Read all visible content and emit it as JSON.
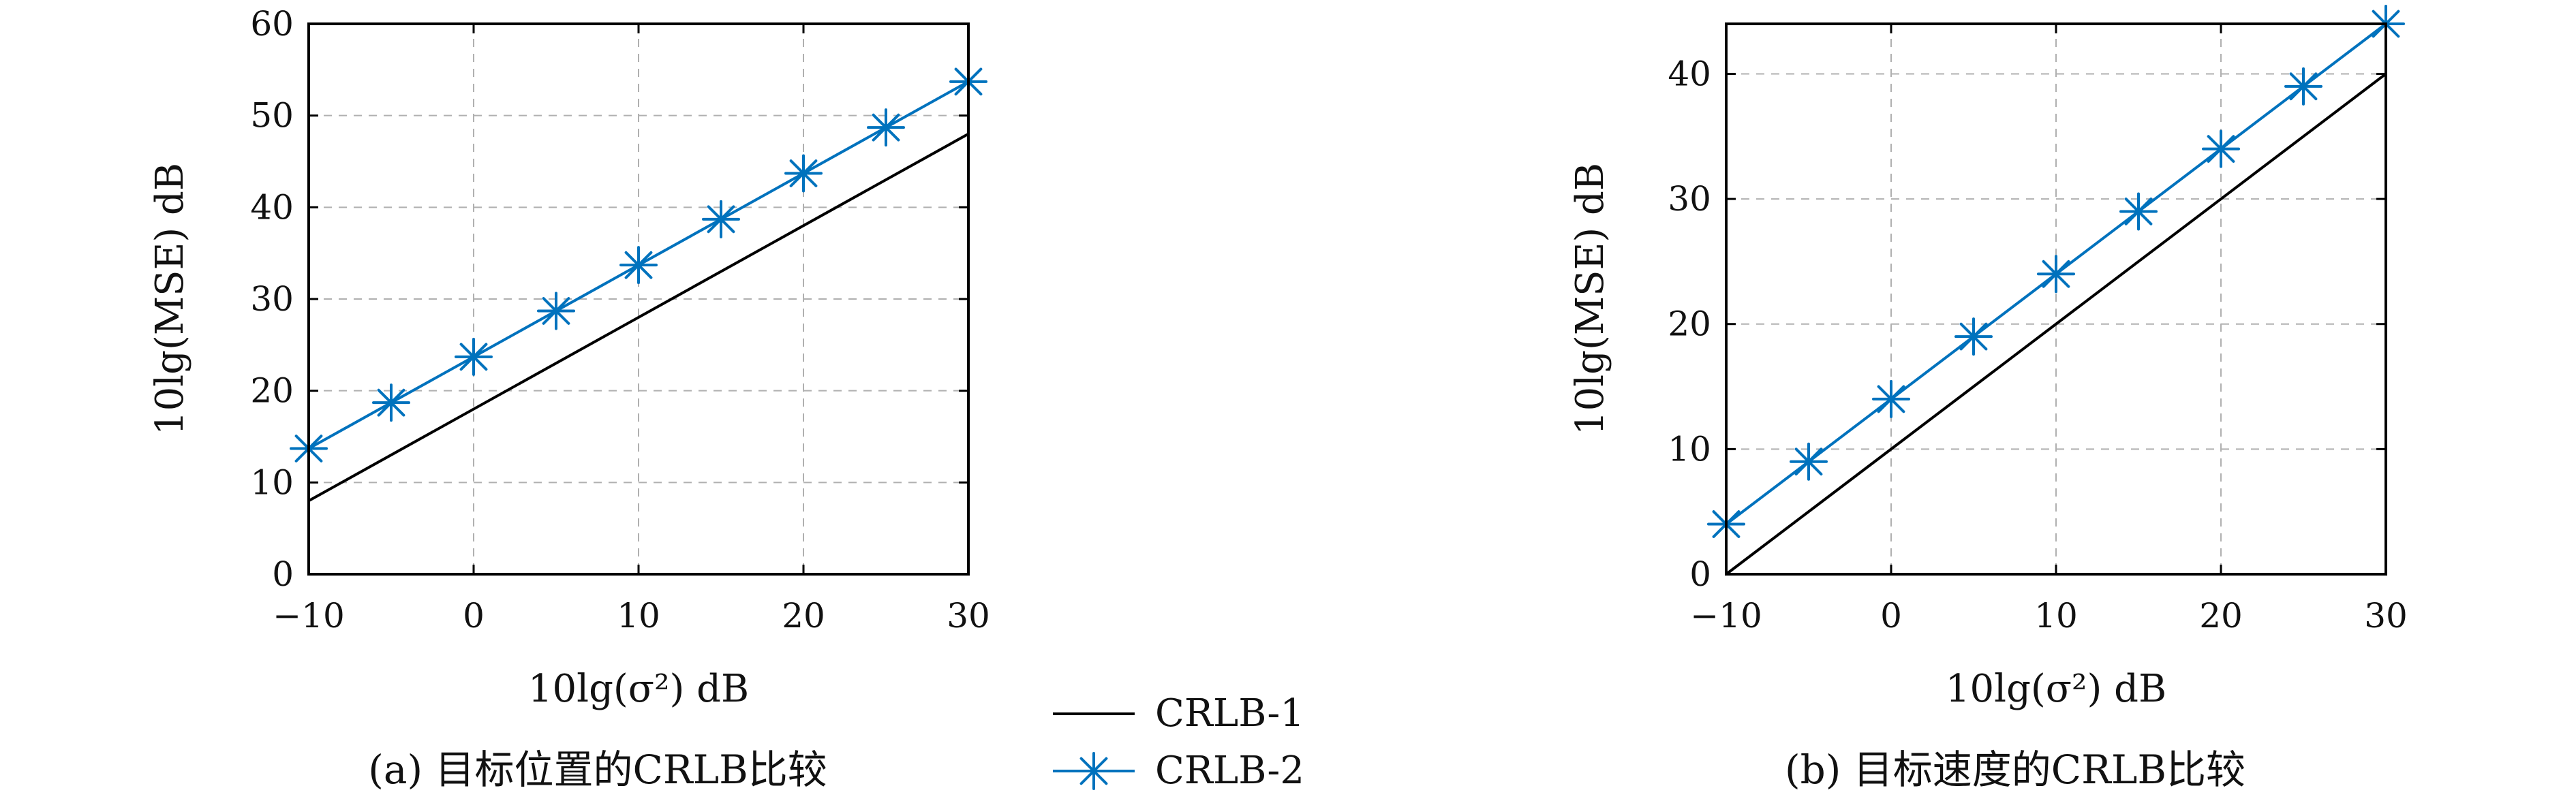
{
  "colors": {
    "crlb1": "#000000",
    "crlb2": "#0072bd",
    "grid": "#b0b0b0"
  },
  "legend": {
    "items": [
      {
        "label": "CRLB-1",
        "color": "#000000",
        "marker": "none"
      },
      {
        "label": "CRLB-2",
        "color": "#0072bd",
        "marker": "asterisk"
      }
    ]
  },
  "chart_data": [
    {
      "type": "line",
      "caption": "(a) 目标位置的CRLB比较",
      "xlabel": "10lg(σ²) dB",
      "ylabel": "10lg(MSE) dB",
      "xlim": [
        -10,
        30
      ],
      "ylim": [
        0,
        60
      ],
      "xticks": [
        -10,
        0,
        10,
        20,
        30
      ],
      "xtick_labels": [
        "−10",
        "0",
        "10",
        "20",
        "30"
      ],
      "yticks": [
        0,
        10,
        20,
        30,
        40,
        50,
        60
      ],
      "ytick_labels": [
        "0",
        "10",
        "20",
        "30",
        "40",
        "50",
        "60"
      ],
      "grid": true,
      "series": [
        {
          "name": "CRLB-1",
          "x": [
            -10,
            30
          ],
          "y": [
            8,
            48
          ]
        },
        {
          "name": "CRLB-2",
          "x": [
            -10,
            -5,
            0,
            5,
            10,
            15,
            20,
            25,
            30
          ],
          "y": [
            13.7,
            18.7,
            23.7,
            28.7,
            33.7,
            38.7,
            43.7,
            48.7,
            53.7
          ]
        }
      ]
    },
    {
      "type": "line",
      "caption": "(b) 目标速度的CRLB比较",
      "xlabel": "10lg(σ²) dB",
      "ylabel": "10lg(MSE) dB",
      "xlim": [
        -10,
        30
      ],
      "ylim": [
        0,
        44
      ],
      "xticks": [
        -10,
        0,
        10,
        20,
        30
      ],
      "xtick_labels": [
        "−10",
        "0",
        "10",
        "20",
        "30"
      ],
      "yticks": [
        0,
        10,
        20,
        30,
        40
      ],
      "ytick_labels": [
        "0",
        "10",
        "20",
        "30",
        "40"
      ],
      "grid": true,
      "series": [
        {
          "name": "CRLB-1",
          "x": [
            -10,
            30
          ],
          "y": [
            0,
            40
          ]
        },
        {
          "name": "CRLB-2",
          "x": [
            -10,
            -5,
            0,
            5,
            10,
            15,
            20,
            25,
            30
          ],
          "y": [
            4,
            9,
            14,
            19,
            24,
            29,
            34,
            39,
            44
          ]
        }
      ]
    }
  ]
}
